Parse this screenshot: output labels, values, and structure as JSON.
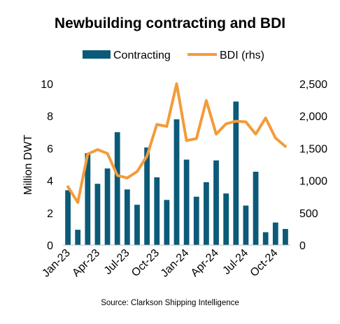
{
  "chart_data": {
    "type": "bar+line",
    "title": "Newbuilding contracting and BDI",
    "source": "Source: Clarkson Shipping Intelligence",
    "ylabel": "Million DWT",
    "y_ticks": [
      "0",
      "2",
      "4",
      "6",
      "8",
      "10"
    ],
    "y2_ticks": [
      "0",
      "500",
      "1,000",
      "1,500",
      "2,000",
      "2,500"
    ],
    "ylim": [
      0,
      10
    ],
    "y2lim": [
      0,
      2500
    ],
    "x_ticks": [
      "Jan-23",
      "Apr-23",
      "Jul-23",
      "Oct-23",
      "Jan-24",
      "Apr-24",
      "Jul-24",
      "Oct-24"
    ],
    "categories": [
      "Jan-23",
      "Feb-23",
      "Mar-23",
      "Apr-23",
      "May-23",
      "Jun-23",
      "Jul-23",
      "Aug-23",
      "Sep-23",
      "Oct-23",
      "Nov-23",
      "Dec-23",
      "Jan-24",
      "Feb-24",
      "Mar-24",
      "Apr-24",
      "May-24",
      "Jun-24",
      "Jul-24",
      "Aug-24",
      "Sep-24",
      "Oct-24",
      "Nov-24"
    ],
    "grid": false,
    "legend_position": "top",
    "series": [
      {
        "name": "Contracting",
        "type": "bar",
        "axis": "left",
        "color": "#0b5a78",
        "values": [
          3.4,
          0.95,
          5.7,
          3.8,
          4.75,
          7.0,
          3.45,
          2.5,
          6.05,
          4.2,
          2.8,
          7.8,
          5.3,
          3.0,
          3.9,
          5.25,
          3.2,
          8.9,
          2.45,
          4.55,
          0.8,
          1.4,
          1.0
        ]
      },
      {
        "name": "BDI (rhs)",
        "type": "line",
        "axis": "right",
        "color": "#f39b3a",
        "values": [
          905,
          660,
          1410,
          1480,
          1420,
          1080,
          1040,
          1140,
          1380,
          1870,
          1840,
          2500,
          1620,
          1650,
          2240,
          1720,
          1880,
          1920,
          1910,
          1720,
          1970,
          1660,
          1530
        ]
      }
    ]
  }
}
